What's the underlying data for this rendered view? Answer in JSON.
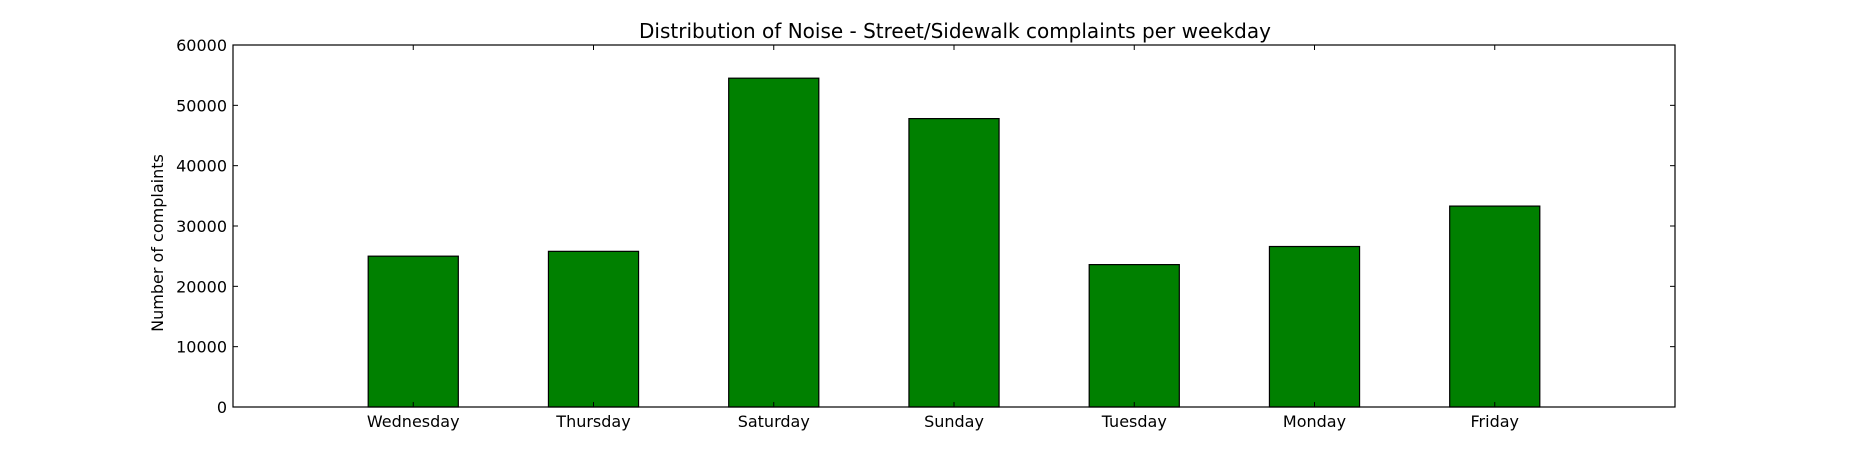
{
  "chart_data": {
    "type": "bar",
    "title": "Distribution of  Noise - Street/Sidewalk complaints per weekday",
    "xlabel": "",
    "ylabel": "Number of complaints",
    "categories": [
      "Wednesday",
      "Thursday",
      "Saturday",
      "Sunday",
      "Tuesday",
      "Monday",
      "Friday"
    ],
    "values": [
      25000,
      25800,
      54500,
      47800,
      23600,
      26600,
      33300
    ],
    "ylim": [
      0,
      60000
    ],
    "yticks": [
      0,
      10000,
      20000,
      30000,
      40000,
      50000,
      60000
    ],
    "ytick_labels": [
      "0",
      "10000",
      "20000",
      "30000",
      "40000",
      "50000",
      "60000"
    ],
    "grid": false,
    "bar_color": "#008000",
    "edge_color": "#000000"
  }
}
